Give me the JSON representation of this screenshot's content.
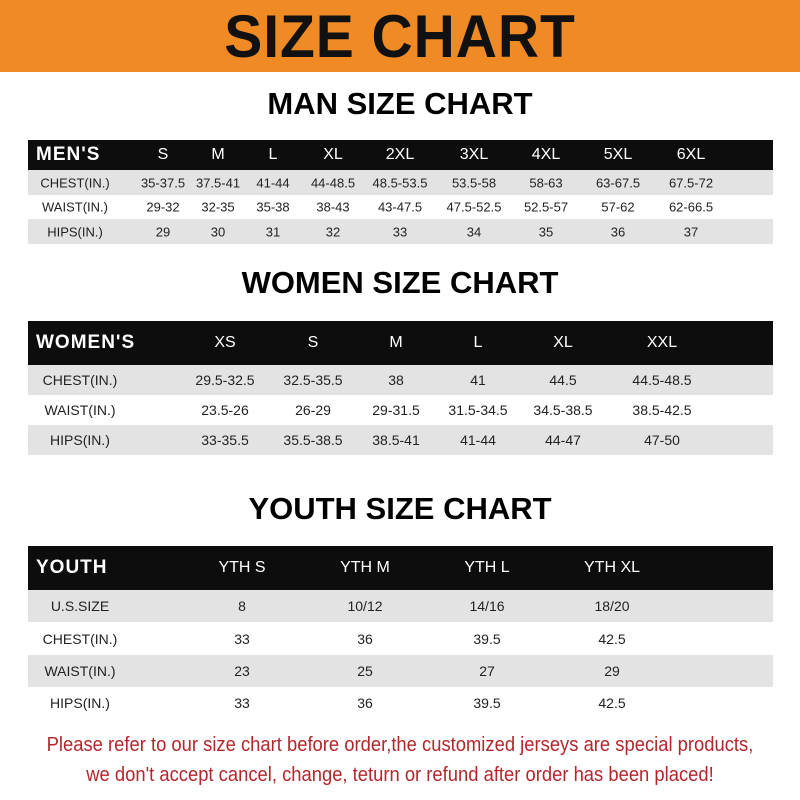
{
  "title": "SIZE CHART",
  "sections": [
    {
      "title": "MAN SIZE CHART",
      "header": [
        "MEN'S",
        "S",
        "M",
        "L",
        "XL",
        "2XL",
        "3XL",
        "4XL",
        "5XL",
        "6XL"
      ],
      "rows": [
        [
          "CHEST(IN.)",
          "35-37.5",
          "37.5-41",
          "41-44",
          "44-48.5",
          "48.5-53.5",
          "53.5-58",
          "58-63",
          "63-67.5",
          "67.5-72"
        ],
        [
          "WAIST(IN.)",
          "29-32",
          "32-35",
          "35-38",
          "38-43",
          "43-47.5",
          "47.5-52.5",
          "52.5-57",
          "57-62",
          "62-66.5"
        ],
        [
          "HIPS(IN.)",
          "29",
          "30",
          "31",
          "32",
          "33",
          "34",
          "35",
          "36",
          "37"
        ]
      ]
    },
    {
      "title": "WOMEN SIZE CHART",
      "header": [
        "WOMEN'S",
        "XS",
        "S",
        "M",
        "L",
        "XL",
        "XXL"
      ],
      "rows": [
        [
          "CHEST(IN.)",
          "29.5-32.5",
          "32.5-35.5",
          "38",
          "41",
          "44.5",
          "44.5-48.5"
        ],
        [
          "WAIST(IN.)",
          "23.5-26",
          "26-29",
          "29-31.5",
          "31.5-34.5",
          "34.5-38.5",
          "38.5-42.5"
        ],
        [
          "HIPS(IN.)",
          "33-35.5",
          "35.5-38.5",
          "38.5-41",
          "41-44",
          "44-47",
          "47-50"
        ]
      ]
    },
    {
      "title": "YOUTH SIZE CHART",
      "header": [
        "YOUTH",
        "YTH S",
        "YTH M",
        "YTH L",
        "YTH XL"
      ],
      "rows": [
        [
          "U.S.SIZE",
          "8",
          "10/12",
          "14/16",
          "18/20"
        ],
        [
          "CHEST(IN.)",
          "33",
          "36",
          "39.5",
          "42.5"
        ],
        [
          "WAIST(IN.)",
          "23",
          "25",
          "27",
          "29"
        ],
        [
          "HIPS(IN.)",
          "33",
          "36",
          "39.5",
          "42.5"
        ]
      ]
    }
  ],
  "notice": [
    "Please refer to our size chart before order,the customized jerseys are special products,",
    "we don't accept cancel, change, teturn or refund after order has been placed!"
  ],
  "colors": {
    "banner": "#f08a24",
    "header_row": "#0d0d0d",
    "stripe": "#e3e3e3",
    "notice": "#b3262b"
  }
}
